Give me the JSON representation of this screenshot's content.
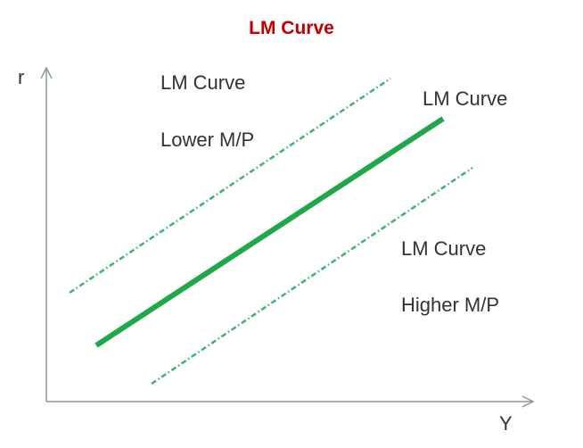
{
  "title": "LM Curve",
  "axes": {
    "y_label": "r",
    "x_label": "Y"
  },
  "curves": {
    "original": {
      "label": "LM Curve",
      "style": "solid",
      "color": "#1fa84a"
    },
    "lower": {
      "label": "LM Curve",
      "sublabel": "Lower M/P",
      "style": "dash-dot",
      "color": "#3cb371"
    },
    "higher": {
      "label": "LM Curve",
      "sublabel": "Higher M/P",
      "style": "dash-dot",
      "color": "#3cb371"
    }
  },
  "axis_color": "#8a9a92"
}
